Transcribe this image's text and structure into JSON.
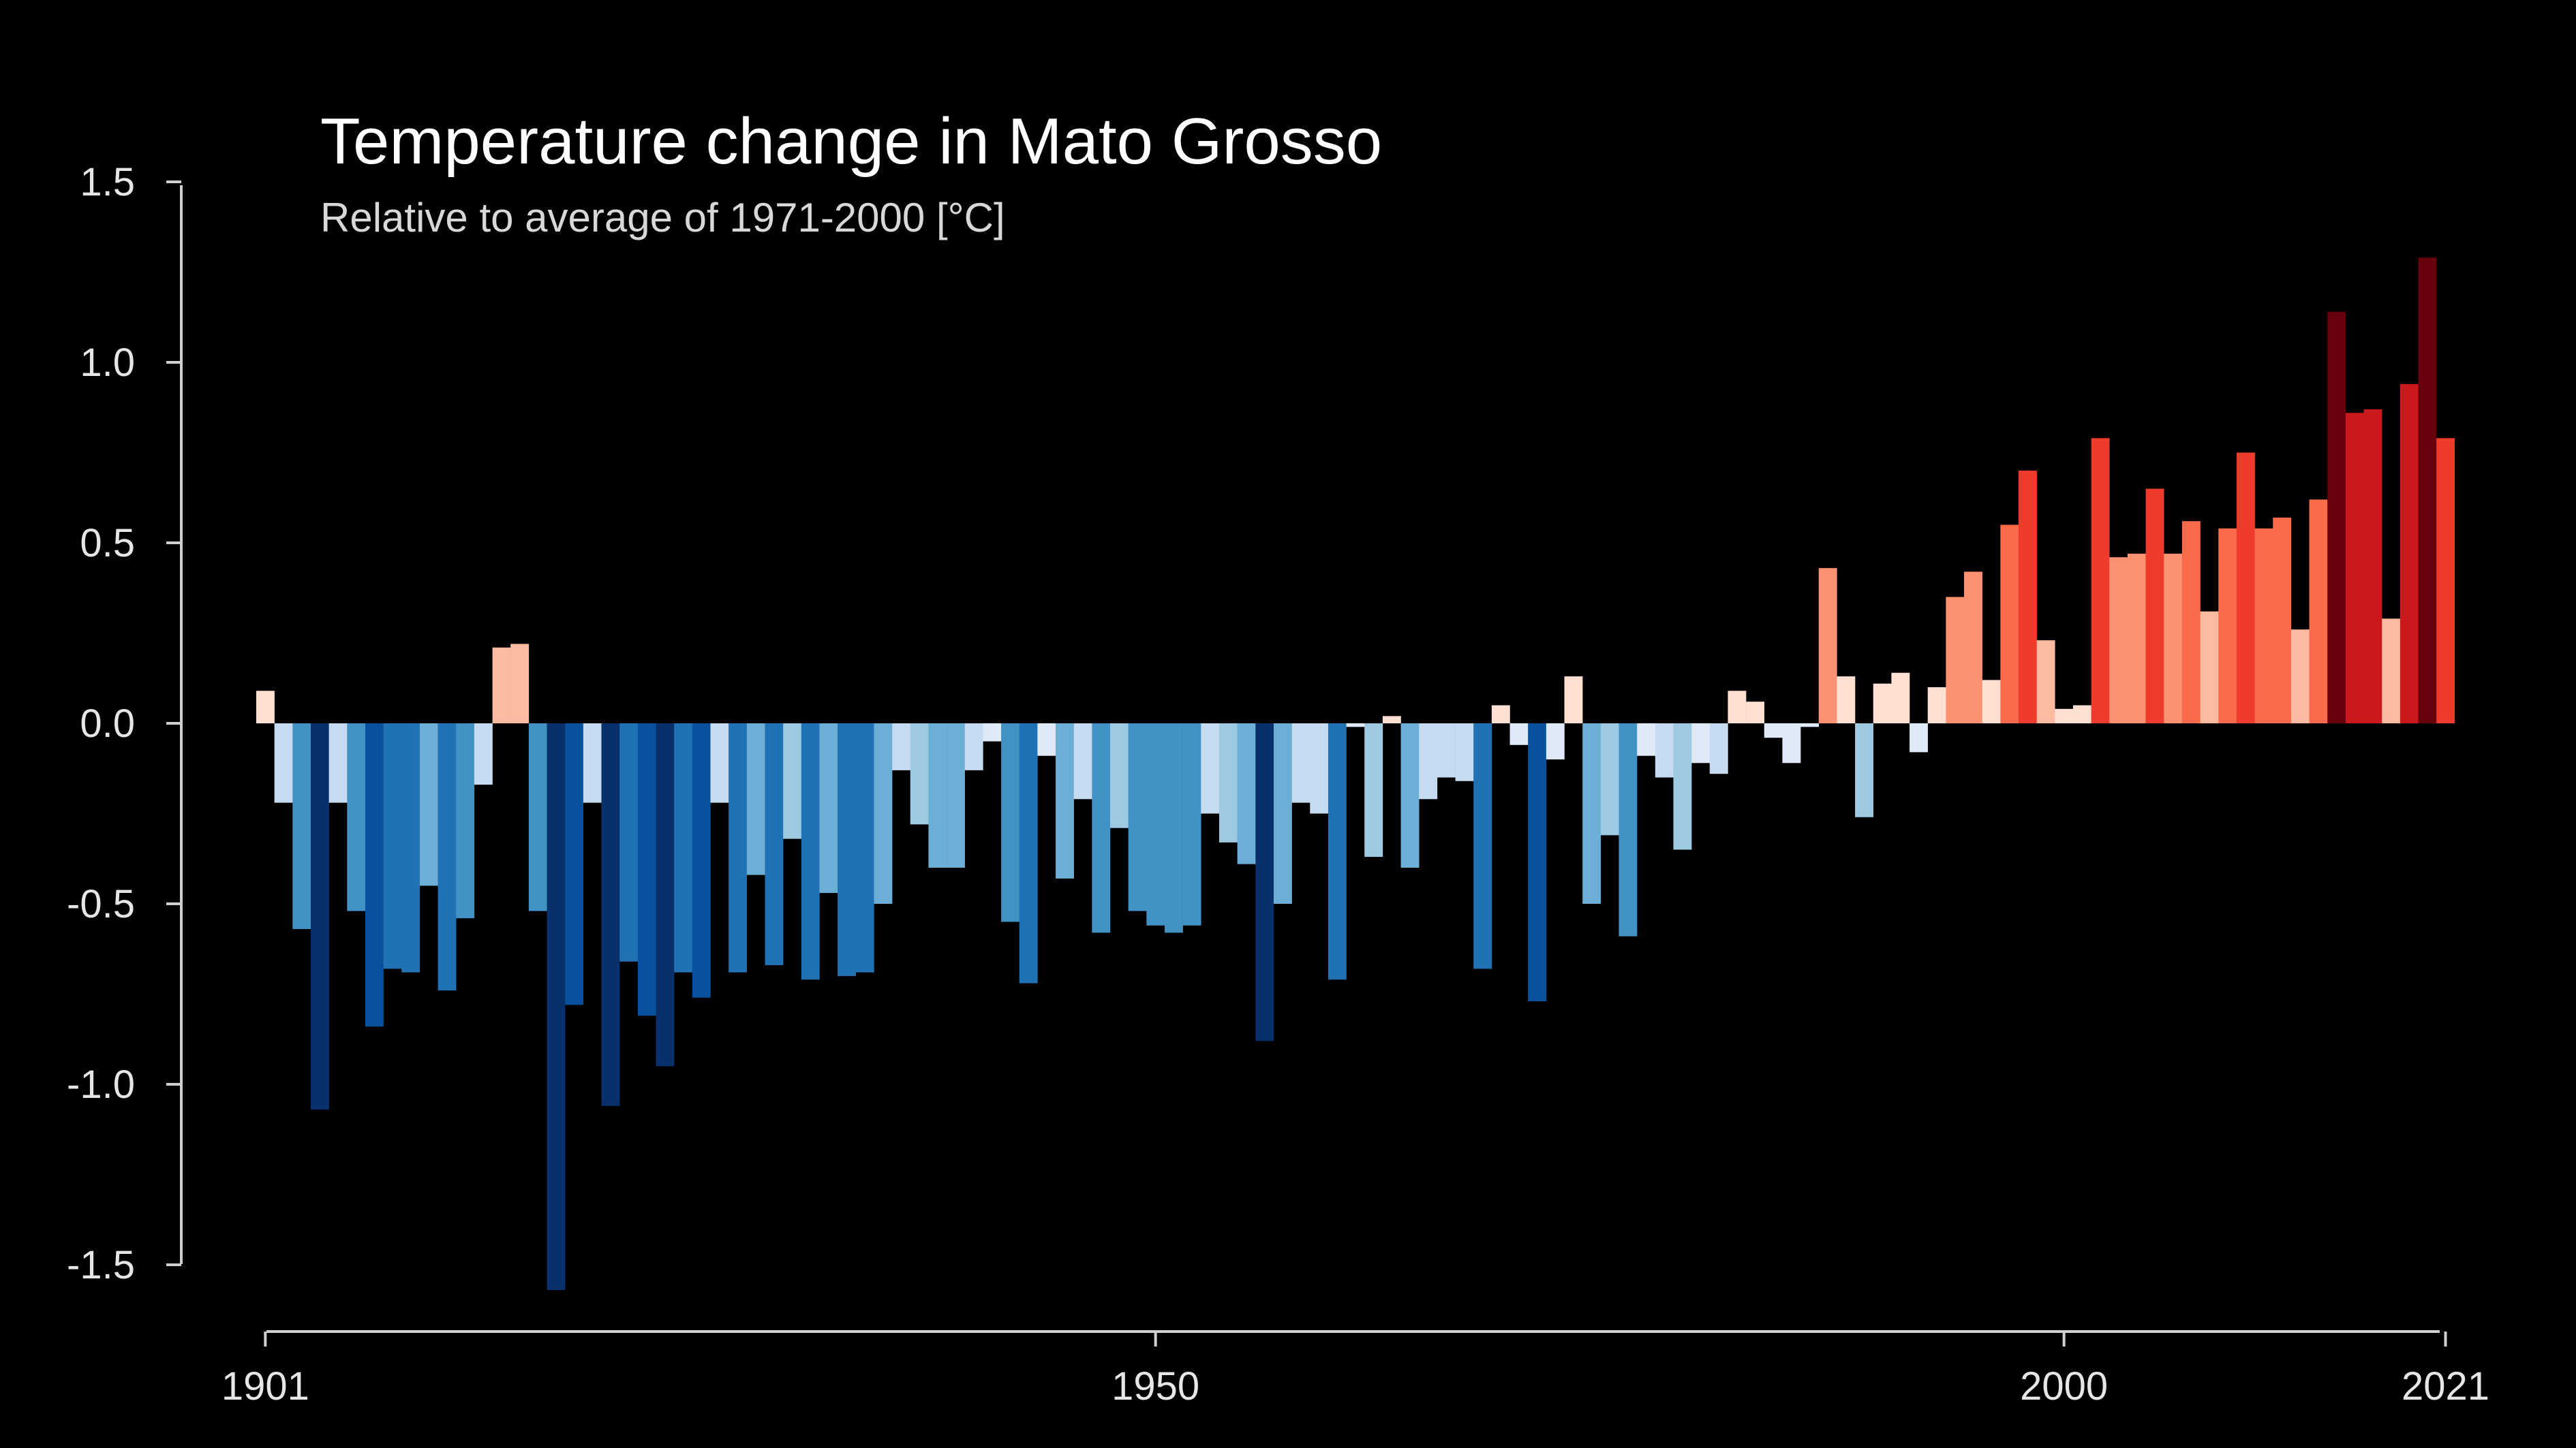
{
  "chart_data": {
    "type": "bar",
    "title": "Temperature change in Mato Grosso",
    "subtitle": "Relative to average of 1971-2000  [°C]",
    "xlabel": "",
    "ylabel": "",
    "x_start": 1901,
    "x_end": 2021,
    "ylim": [
      -1.6,
      1.5
    ],
    "y_ticks": [
      "1.5",
      "1.0",
      "0.5",
      "0.0",
      "-0.5",
      "-1.0",
      "-1.5"
    ],
    "x_ticks": [
      "1901",
      "1950",
      "2000",
      "2021"
    ],
    "grid": false,
    "color_scale": {
      "cold_range": [
        -1.0,
        0.0
      ],
      "warm_range": [
        0.0,
        1.3
      ],
      "cold_colors": [
        "#08306b",
        "#08519c",
        "#2171b5",
        "#4292c6",
        "#6baed6",
        "#9ecae1",
        "#c6dbef",
        "#deebf7"
      ],
      "warm_colors": [
        "#fee0d2",
        "#fcbba1",
        "#fc9272",
        "#fb6a4a",
        "#ef3b2c",
        "#cb181d",
        "#a50f15",
        "#67000d"
      ]
    },
    "values": [
      0.09,
      -0.22,
      -0.57,
      -1.07,
      -0.22,
      -0.52,
      -0.84,
      -0.68,
      -0.69,
      -0.45,
      -0.74,
      -0.54,
      -0.17,
      0.21,
      0.22,
      -0.52,
      -1.57,
      -0.78,
      -0.22,
      -1.06,
      -0.66,
      -0.81,
      -0.95,
      -0.69,
      -0.76,
      -0.22,
      -0.69,
      -0.42,
      -0.67,
      -0.32,
      -0.71,
      -0.47,
      -0.7,
      -0.69,
      -0.5,
      -0.13,
      -0.28,
      -0.4,
      -0.4,
      -0.13,
      -0.05,
      -0.55,
      -0.72,
      -0.09,
      -0.43,
      -0.21,
      -0.58,
      -0.29,
      -0.52,
      -0.56,
      -0.58,
      -0.56,
      -0.25,
      -0.33,
      -0.39,
      -0.88,
      -0.5,
      -0.22,
      -0.25,
      -0.71,
      -0.01,
      -0.37,
      0.02,
      -0.4,
      -0.21,
      -0.15,
      -0.16,
      -0.68,
      0.05,
      -0.06,
      -0.77,
      -0.1,
      0.13,
      -0.5,
      -0.31,
      -0.59,
      -0.09,
      -0.15,
      -0.35,
      -0.11,
      -0.14,
      0.09,
      0.06,
      -0.04,
      -0.11,
      -0.01,
      0.43,
      0.13,
      -0.26,
      0.11,
      0.14,
      -0.08,
      0.1,
      0.35,
      0.42,
      0.12,
      0.55,
      0.7,
      0.23,
      0.04,
      0.05,
      0.79,
      0.46,
      0.47,
      0.65,
      0.47,
      0.56,
      0.31,
      0.54,
      0.75,
      0.54,
      0.57,
      0.26,
      0.62,
      1.14,
      0.86,
      0.87,
      0.29,
      0.94,
      1.29,
      0.79
    ]
  }
}
